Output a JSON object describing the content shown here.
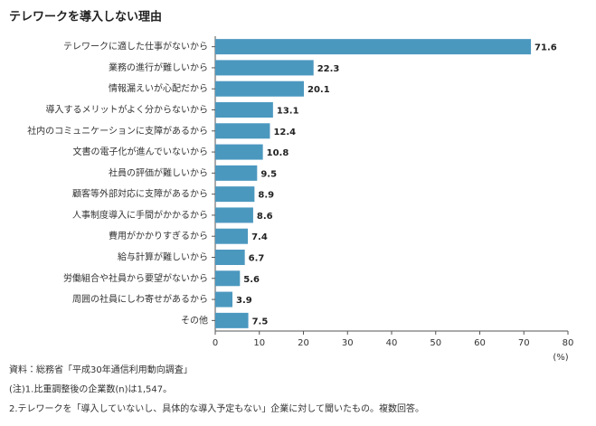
{
  "chart_data": {
    "type": "hbar",
    "title": "テレワークを導入しない理由",
    "categories": [
      "テレワークに適した仕事がないから",
      "業務の進行が難しいから",
      "情報漏えいが心配だから",
      "導入するメリットがよく分からないから",
      "社内のコミュニケーションに支障があるから",
      "文書の電子化が進んでいないから",
      "社員の評価が難しいから",
      "顧客等外部対応に支障があるから",
      "人事制度導入に手間がかかるから",
      "費用がかかりすぎるから",
      "給与計算が難しいから",
      "労働組合や社員から要望がないから",
      "周囲の社員にしわ寄せがあるから",
      "その他"
    ],
    "values": [
      71.6,
      22.3,
      20.1,
      13.1,
      12.4,
      10.8,
      9.5,
      8.9,
      8.6,
      7.4,
      6.7,
      5.6,
      3.9,
      7.5
    ],
    "color": "#4b98bf",
    "xlim": [
      0,
      80
    ],
    "xticks": [
      0,
      10,
      20,
      30,
      40,
      50,
      60,
      70,
      80
    ],
    "x_label": "(%)",
    "grid": false,
    "notes": [
      "資料：総務省「平成30年通信利用動向調査」",
      "(注)1.比重調整後の企業数(n)は1,547。",
      "2.テレワークを「導入していないし、具体的な導入予定もない」企業に対して聞いたもの。複数回答。"
    ]
  }
}
